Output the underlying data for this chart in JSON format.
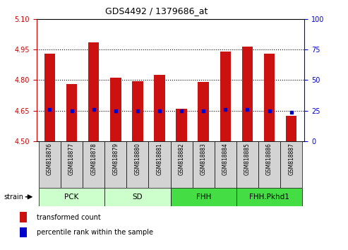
{
  "title": "GDS4492 / 1379686_at",
  "samples": [
    "GSM818876",
    "GSM818877",
    "GSM818878",
    "GSM818879",
    "GSM818880",
    "GSM818881",
    "GSM818882",
    "GSM818883",
    "GSM818884",
    "GSM818885",
    "GSM818886",
    "GSM818887"
  ],
  "bar_values": [
    4.93,
    4.78,
    4.985,
    4.81,
    4.795,
    4.825,
    4.66,
    4.79,
    4.94,
    4.965,
    4.93,
    4.625
  ],
  "percentile_values": [
    4.655,
    4.648,
    4.657,
    4.648,
    4.648,
    4.648,
    4.648,
    4.65,
    4.655,
    4.655,
    4.65,
    4.643
  ],
  "bar_bottom": 4.5,
  "ylim_left": [
    4.5,
    5.1
  ],
  "ylim_right": [
    0,
    100
  ],
  "yticks_left": [
    4.5,
    4.65,
    4.8,
    4.95,
    5.1
  ],
  "yticks_right": [
    0,
    25,
    50,
    75,
    100
  ],
  "bar_color": "#cc1111",
  "dot_color": "#0000cc",
  "group_labels": [
    "PCK",
    "SD",
    "FHH",
    "FHH.Pkhd1"
  ],
  "group_ranges": [
    [
      0,
      2
    ],
    [
      3,
      5
    ],
    [
      6,
      8
    ],
    [
      9,
      11
    ]
  ],
  "group_colors": [
    "#ccffcc",
    "#ccffcc",
    "#44dd44",
    "#44dd44"
  ],
  "strain_label": "strain",
  "legend_bar_label": "transformed count",
  "legend_dot_label": "percentile rank within the sample",
  "grid_yticks": [
    4.65,
    4.8,
    4.95
  ],
  "tick_label_color_left": "#cc0000",
  "tick_label_color_right": "#0000cc",
  "sample_box_color": "#d3d3d3",
  "bar_width": 0.5
}
